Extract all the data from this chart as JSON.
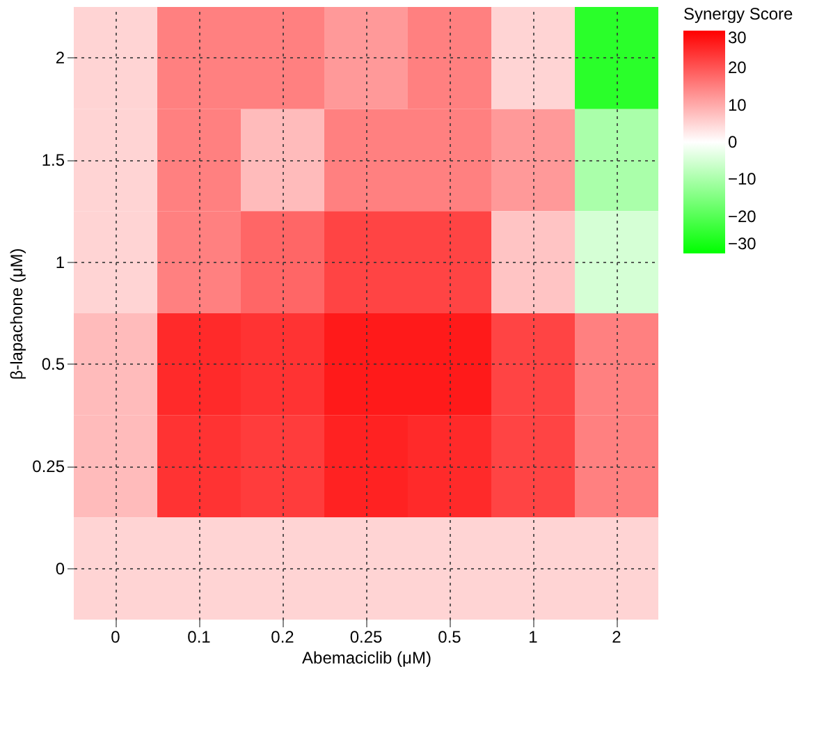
{
  "chart_data": {
    "type": "heatmap",
    "xlabel": "Abemaciclib (μM)",
    "ylabel": "β-lapachone (μM)",
    "legend_title": "Synergy Score",
    "categories": [
      "0",
      "0.1",
      "0.2",
      "0.25",
      "0.5",
      "1",
      "2"
    ],
    "y_categories": [
      "2",
      "1.5",
      "1",
      "0.5",
      "0.25",
      "0"
    ],
    "cells": [
      [
        5,
        15,
        15,
        12,
        15,
        5,
        -25
      ],
      [
        5,
        15,
        8,
        15,
        15,
        12,
        -10
      ],
      [
        5,
        15,
        18,
        22,
        22,
        7,
        -5
      ],
      [
        8,
        25,
        24,
        27,
        27,
        22,
        15
      ],
      [
        8,
        24,
        23,
        26,
        25,
        22,
        15
      ],
      [
        5,
        5,
        5,
        5,
        5,
        5,
        5
      ]
    ],
    "clim": [
      -30,
      30
    ],
    "cticks": [
      -30,
      -20,
      -10,
      0,
      10,
      20,
      30
    ],
    "colors": [
      "#00ff00",
      "#ffffff",
      "#ff0000"
    ],
    "grid": true
  }
}
